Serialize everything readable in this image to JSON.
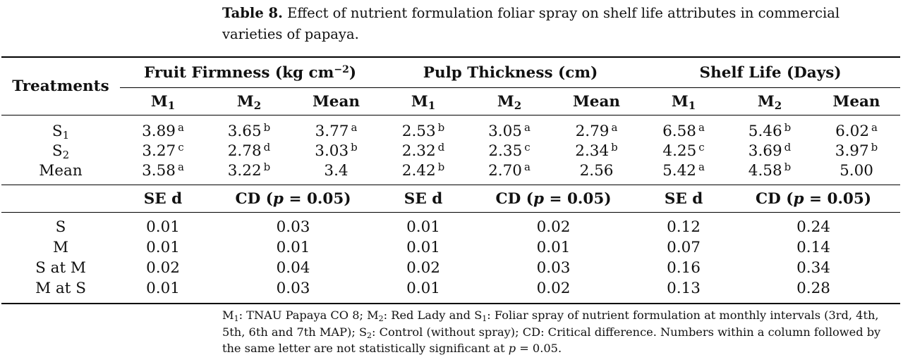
{
  "caption": {
    "label": "Table 8.",
    "text": "Effect of nutrient formulation foliar spray on shelf life attributes in commercial varieties of papaya."
  },
  "header": {
    "treatments": "Treatments",
    "groups": [
      "Fruit Firmness (kg cm",
      "Pulp Thickness (cm)",
      "Shelf Life (Days)"
    ],
    "firmness_exp": "−2",
    "firmness_close": ")",
    "subcols": [
      {
        "base": "M",
        "sub": "1"
      },
      {
        "base": "M",
        "sub": "2"
      },
      {
        "base": "Mean",
        "sub": ""
      }
    ]
  },
  "rows": [
    {
      "label": "S",
      "label_sub": "1",
      "cells": [
        {
          "v": "3.89",
          "s": "a"
        },
        {
          "v": "3.65",
          "s": "b"
        },
        {
          "v": "3.77",
          "s": "a"
        },
        {
          "v": "2.53",
          "s": "b"
        },
        {
          "v": "3.05",
          "s": "a"
        },
        {
          "v": "2.79",
          "s": "a"
        },
        {
          "v": "6.58",
          "s": "a"
        },
        {
          "v": "5.46",
          "s": "b"
        },
        {
          "v": "6.02",
          "s": "a"
        }
      ]
    },
    {
      "label": "S",
      "label_sub": "2",
      "cells": [
        {
          "v": "3.27",
          "s": "c"
        },
        {
          "v": "2.78",
          "s": "d"
        },
        {
          "v": "3.03",
          "s": "b"
        },
        {
          "v": "2.32",
          "s": "d"
        },
        {
          "v": "2.35",
          "s": "c"
        },
        {
          "v": "2.34",
          "s": "b"
        },
        {
          "v": "4.25",
          "s": "c"
        },
        {
          "v": "3.69",
          "s": "d"
        },
        {
          "v": "3.97",
          "s": "b"
        }
      ]
    },
    {
      "label": "Mean",
      "label_sub": "",
      "cells": [
        {
          "v": "3.58",
          "s": "a"
        },
        {
          "v": "3.22",
          "s": "b"
        },
        {
          "v": "3.4",
          "s": ""
        },
        {
          "v": "2.42",
          "s": "b"
        },
        {
          "v": "2.70",
          "s": "a"
        },
        {
          "v": "2.56",
          "s": ""
        },
        {
          "v": "5.42",
          "s": "a"
        },
        {
          "v": "4.58",
          "s": "b"
        },
        {
          "v": "5.00",
          "s": ""
        }
      ]
    }
  ],
  "stats_header": {
    "sed": "SE d",
    "cd_open": "CD (",
    "cd_p": "p",
    "cd_rest": " = 0.05)"
  },
  "stats": [
    {
      "label": "S",
      "vals": [
        "0.01",
        "0.03",
        "0.01",
        "0.02",
        "0.12",
        "0.24"
      ]
    },
    {
      "label": "M",
      "vals": [
        "0.01",
        "0.01",
        "0.01",
        "0.01",
        "0.07",
        "0.14"
      ]
    },
    {
      "label": "S at M",
      "vals": [
        "0.02",
        "0.04",
        "0.02",
        "0.03",
        "0.16",
        "0.34"
      ]
    },
    {
      "label": "M at S",
      "vals": [
        "0.01",
        "0.03",
        "0.01",
        "0.02",
        "0.13",
        "0.28"
      ]
    }
  ],
  "footnote": {
    "m1": "M",
    "m1_sub": "1",
    "t1": ": TNAU Papaya CO 8; ",
    "m2": "M",
    "m2_sub": "2",
    "t2": ": Red Lady and ",
    "s1": "S",
    "s1_sub": "1",
    "t3": ": Foliar spray of nutrient formulation at monthly intervals (3rd, 4th, 5th, 6th and 7th MAP); ",
    "s2": "S",
    "s2_sub": "2",
    "t4": ": Control (without spray); CD: Critical difference. Numbers within a column followed by the same letter are not statistically significant at ",
    "p": "p",
    "t5": " = 0.05."
  }
}
